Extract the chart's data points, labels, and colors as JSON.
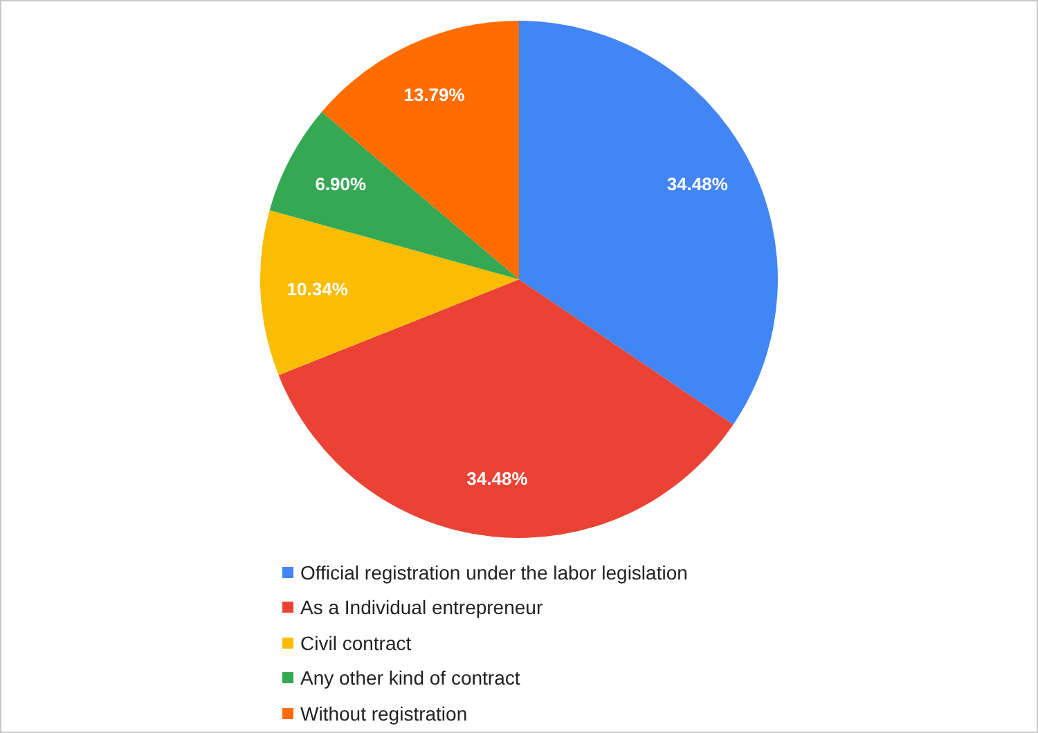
{
  "chart_data": {
    "type": "pie",
    "categories": [
      "Official registration under the labor legislation",
      "As a Individual entrepreneur",
      "Civil contract",
      "Any other kind of contract",
      "Without registration"
    ],
    "values": [
      34.48,
      34.48,
      10.34,
      6.9,
      13.79
    ],
    "value_labels": [
      "34.48%",
      "34.48%",
      "10.34%",
      "6.90%",
      "13.79%"
    ],
    "colors": [
      "#4285f4",
      "#ea4335",
      "#fbbc04",
      "#34a853",
      "#ff6d01"
    ],
    "legend": "bottom"
  }
}
